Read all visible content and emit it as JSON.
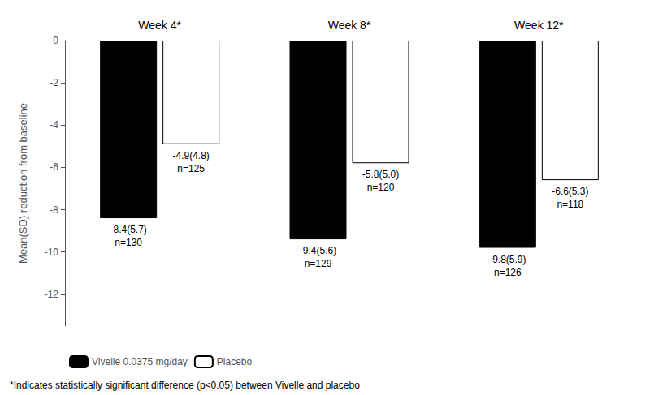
{
  "chart_data": {
    "type": "bar",
    "categories": [
      "Week 4*",
      "Week 8*",
      "Week 12*"
    ],
    "series": [
      {
        "name": "Vivelle 0.0375 mg/day",
        "color": "#000000",
        "values": [
          -8.4,
          -9.4,
          -9.8
        ],
        "value_labels": [
          "-8.4(5.7)\nn=130",
          "-9.4(5.6)\nn=129",
          "-9.8(5.9)\nn=126"
        ]
      },
      {
        "name": "Placebo",
        "color": "#ffffff",
        "values": [
          -4.9,
          -5.8,
          -6.6
        ],
        "value_labels": [
          "-4.9(4.8)\nn=125",
          "-5.8(5.0)\nn=120",
          "-6.6(5.3)\nn=118"
        ]
      }
    ],
    "y_label": "Mean(SD) reduction from baseline",
    "ylim": [
      -13.5,
      0.0
    ],
    "yticks": [
      0,
      -2,
      -4,
      -6,
      -8,
      -10,
      -12
    ],
    "annotations": [
      "*Indicates statistically significant difference (p<0.05) between Vivelle and placebo"
    ],
    "legend": "lower left",
    "grid": false,
    "data_labels": true
  }
}
